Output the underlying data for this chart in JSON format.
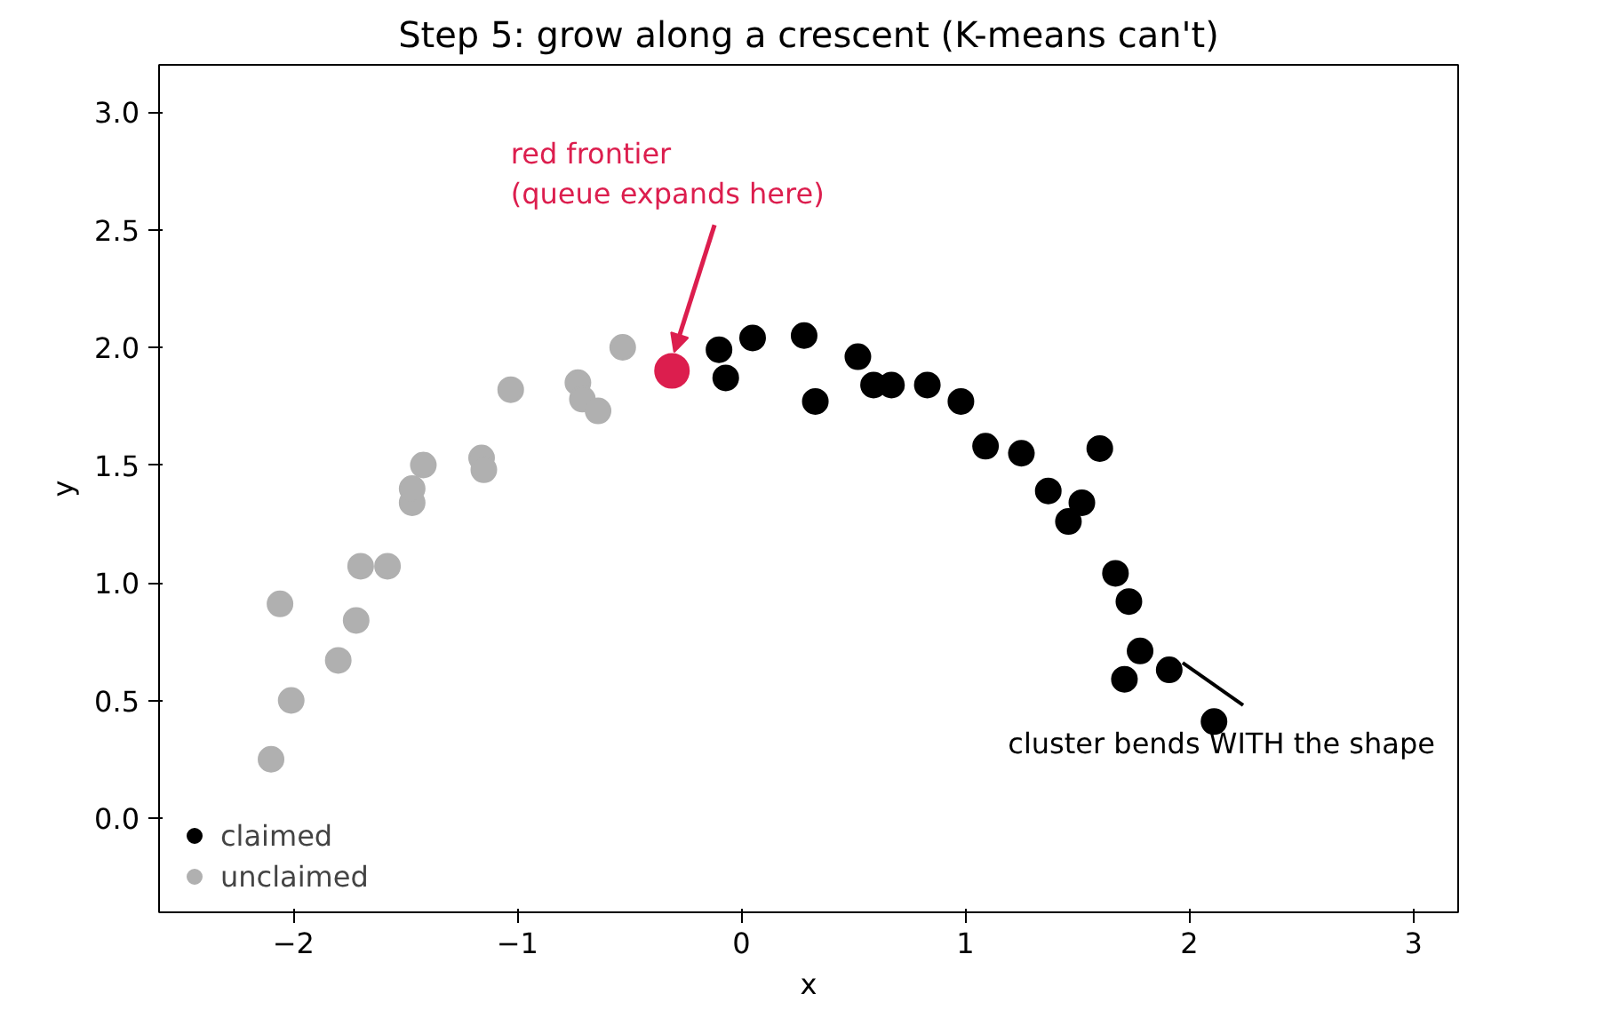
{
  "chart_data": {
    "type": "scatter",
    "title": "Step 5: grow along a crescent (K-means can't)",
    "xlabel": "x",
    "ylabel": "y",
    "xlim": [
      -2.6,
      3.2
    ],
    "ylim": [
      -0.4,
      3.2
    ],
    "xticks": [
      {
        "value": -2,
        "label": "−2"
      },
      {
        "value": -1,
        "label": "−1"
      },
      0,
      1,
      2,
      3
    ],
    "yticks": [
      {
        "value": 0,
        "label": "0.0"
      },
      {
        "value": 0.5,
        "label": "0.5"
      },
      {
        "value": 1,
        "label": "1.0"
      },
      {
        "value": 1.5,
        "label": "1.5"
      },
      {
        "value": 2,
        "label": "2.0"
      },
      {
        "value": 2.5,
        "label": "2.5"
      },
      {
        "value": 3,
        "label": "3.0"
      }
    ],
    "grid": false,
    "legend": "bottom left",
    "marker": "circle",
    "series": [
      {
        "name": "claimed",
        "color": "#000000",
        "x": [
          -0.1,
          -0.07,
          0.05,
          0.28,
          0.33,
          0.52,
          0.59,
          0.67,
          0.83,
          0.98,
          1.09,
          1.25,
          1.37,
          1.46,
          1.52,
          1.6,
          1.67,
          1.73,
          1.78,
          1.71,
          1.91,
          2.11
        ],
        "values": [
          1.99,
          1.87,
          2.04,
          2.05,
          1.77,
          1.96,
          1.84,
          1.84,
          1.84,
          1.77,
          1.58,
          1.55,
          1.39,
          1.26,
          1.34,
          1.57,
          1.04,
          0.92,
          0.71,
          0.59,
          0.63,
          0.41
        ]
      },
      {
        "name": "unclaimed",
        "color": "#b0b0b0",
        "x": [
          -2.1,
          -2.01,
          -2.06,
          -1.8,
          -1.72,
          -1.7,
          -1.58,
          -1.47,
          -1.47,
          -1.42,
          -1.16,
          -1.15,
          -1.03,
          -0.73,
          -0.71,
          -0.64,
          -0.53
        ],
        "values": [
          0.25,
          0.5,
          0.91,
          0.67,
          0.84,
          1.07,
          1.07,
          1.34,
          1.4,
          1.5,
          1.53,
          1.48,
          1.82,
          1.85,
          1.78,
          1.73,
          2.0
        ]
      },
      {
        "color": "#dc1e4e",
        "x": [
          -0.31
        ],
        "values": [
          1.9
        ]
      }
    ],
    "annotations": [
      {
        "text": "red frontier\n(queue expands here)",
        "x": -0.3,
        "y": 1.98
      },
      {
        "text": "cluster bends WITH the shape",
        "x": 1.97,
        "y": 0.66
      }
    ]
  }
}
